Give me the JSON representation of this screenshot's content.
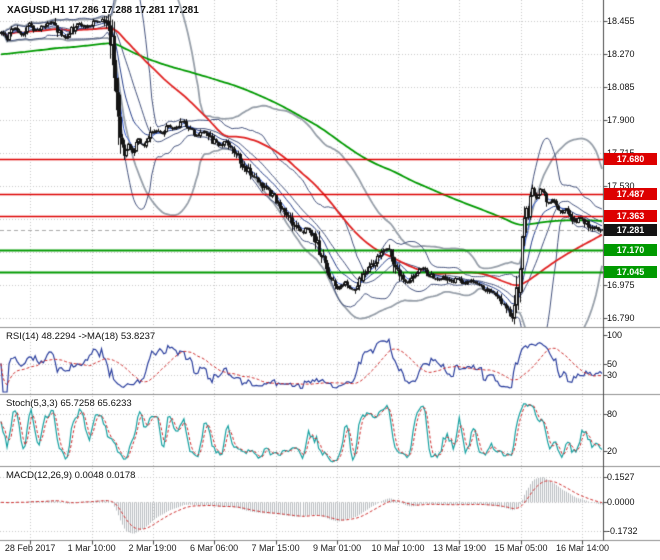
{
  "header": {
    "title": "XAGUSD,H1 17.286 17.288 17.281 17.281",
    "symbol": "XAGUSD",
    "timeframe": "H1"
  },
  "colors": {
    "background": "#ffffff",
    "grid": "#c9c9c9",
    "separator": "#8f8f8f",
    "axis_line": "#4a4a4a",
    "axis_text": "#111111",
    "bull": "#ffffff",
    "bear": "#141414",
    "candle_outline": "#141414",
    "resistance": "#dd0000",
    "support": "#009a00",
    "current_badge": "#141414",
    "badge_text": "#ffffff",
    "bid_line": "#aaaaaa"
  },
  "main_axis": {
    "ticks": [
      "18.455",
      "18.270",
      "18.085",
      "17.900",
      "17.715",
      "17.530",
      "17.345",
      "17.160",
      "16.975",
      "16.790"
    ],
    "levels": [
      {
        "label": "17.680",
        "value": 17.68,
        "kind": "resistance"
      },
      {
        "label": "17.487",
        "value": 17.487,
        "kind": "resistance"
      },
      {
        "label": "17.363",
        "value": 17.363,
        "kind": "resistance"
      },
      {
        "label": "17.170",
        "value": 17.17,
        "kind": "support"
      },
      {
        "label": "17.045",
        "value": 17.045,
        "kind": "support"
      },
      {
        "label": "17.281",
        "value": 17.281,
        "kind": "current"
      }
    ]
  },
  "time_axis": {
    "labels": [
      "28 Feb 2017",
      "1 Mar 10:00",
      "2 Mar 19:00",
      "6 Mar 06:00",
      "7 Mar 15:00",
      "9 Mar 01:00",
      "10 Mar 10:00",
      "13 Mar 19:00",
      "15 Mar 05:00",
      "16 Mar 14:00"
    ],
    "positions": [
      0.05,
      0.152,
      0.253,
      0.355,
      0.457,
      0.559,
      0.66,
      0.762,
      0.864,
      0.966
    ]
  },
  "panels": {
    "rsi": {
      "label": "RSI(14) 48.2294  ->MA(18) 53.8237",
      "ticks": [
        "100",
        "50",
        "30"
      ],
      "tick_values": [
        100,
        50,
        30
      ],
      "level_lines": [
        50,
        30
      ]
    },
    "stoch": {
      "label": "Stoch(5,3,3) 65.7258 65.6233",
      "ticks": [
        "80",
        "20"
      ],
      "tick_values": [
        80,
        20
      ],
      "level_lines": [
        80,
        20
      ]
    },
    "macd": {
      "label": "MACD(12,26,9) 0.0048 0.0178",
      "ticks": [
        "0.1527",
        "0.0000",
        "-0.1732"
      ],
      "tick_values": [
        0.1527,
        0,
        -0.1732
      ],
      "level_lines": [
        0.1527,
        0,
        -0.1732
      ]
    }
  },
  "chart_data": [
    {
      "type": "candlestick",
      "title": "XAGUSD H1",
      "bars": 300,
      "ylim": [
        16.75,
        18.53
      ],
      "last_quote": {
        "open": 17.286,
        "high": 17.288,
        "low": 17.281,
        "close": 17.281
      },
      "current_price": 17.281,
      "levels": {
        "resistance": [
          17.68,
          17.487,
          17.363
        ],
        "support": [
          17.17,
          17.045
        ]
      },
      "x_labels": [
        "28 Feb 2017",
        "1 Mar 10:00",
        "2 Mar 19:00",
        "6 Mar 06:00",
        "7 Mar 15:00",
        "9 Mar 01:00",
        "10 Mar 10:00",
        "13 Mar 19:00",
        "15 Mar 05:00",
        "16 Mar 14:00"
      ],
      "price_path_anchors": [
        [
          0.0,
          18.39
        ],
        [
          0.01,
          18.36
        ],
        [
          0.022,
          18.42
        ],
        [
          0.034,
          18.38
        ],
        [
          0.046,
          18.44
        ],
        [
          0.058,
          18.4
        ],
        [
          0.07,
          18.43
        ],
        [
          0.082,
          18.45
        ],
        [
          0.094,
          18.4
        ],
        [
          0.106,
          18.36
        ],
        [
          0.118,
          18.41
        ],
        [
          0.13,
          18.44
        ],
        [
          0.142,
          18.42
        ],
        [
          0.154,
          18.45
        ],
        [
          0.166,
          18.46
        ],
        [
          0.175,
          18.44
        ],
        [
          0.183,
          18.34
        ],
        [
          0.19,
          18.08
        ],
        [
          0.197,
          17.82
        ],
        [
          0.204,
          17.7
        ],
        [
          0.211,
          17.76
        ],
        [
          0.219,
          17.72
        ],
        [
          0.227,
          17.79
        ],
        [
          0.236,
          17.75
        ],
        [
          0.246,
          17.81
        ],
        [
          0.256,
          17.85
        ],
        [
          0.266,
          17.82
        ],
        [
          0.278,
          17.87
        ],
        [
          0.29,
          17.85
        ],
        [
          0.302,
          17.9
        ],
        [
          0.314,
          17.84
        ],
        [
          0.326,
          17.81
        ],
        [
          0.338,
          17.84
        ],
        [
          0.35,
          17.79
        ],
        [
          0.362,
          17.75
        ],
        [
          0.374,
          17.78
        ],
        [
          0.386,
          17.73
        ],
        [
          0.398,
          17.67
        ],
        [
          0.41,
          17.62
        ],
        [
          0.422,
          17.57
        ],
        [
          0.434,
          17.54
        ],
        [
          0.446,
          17.5
        ],
        [
          0.458,
          17.45
        ],
        [
          0.47,
          17.4
        ],
        [
          0.48,
          17.35
        ],
        [
          0.49,
          17.3
        ],
        [
          0.5,
          17.27
        ],
        [
          0.51,
          17.3
        ],
        [
          0.52,
          17.25
        ],
        [
          0.53,
          17.16
        ],
        [
          0.54,
          17.08
        ],
        [
          0.55,
          16.99
        ],
        [
          0.56,
          16.95
        ],
        [
          0.572,
          16.99
        ],
        [
          0.584,
          16.94
        ],
        [
          0.596,
          17.0
        ],
        [
          0.608,
          17.05
        ],
        [
          0.62,
          17.1
        ],
        [
          0.632,
          17.15
        ],
        [
          0.644,
          17.18
        ],
        [
          0.654,
          17.09
        ],
        [
          0.664,
          17.03
        ],
        [
          0.676,
          16.99
        ],
        [
          0.688,
          17.04
        ],
        [
          0.7,
          17.07
        ],
        [
          0.712,
          17.03
        ],
        [
          0.724,
          17.0
        ],
        [
          0.736,
          17.02
        ],
        [
          0.748,
          16.99
        ],
        [
          0.76,
          17.01
        ],
        [
          0.772,
          16.98
        ],
        [
          0.784,
          17.0
        ],
        [
          0.796,
          16.97
        ],
        [
          0.808,
          16.95
        ],
        [
          0.82,
          16.92
        ],
        [
          0.832,
          16.89
        ],
        [
          0.841,
          16.84
        ],
        [
          0.848,
          16.79
        ],
        [
          0.855,
          16.9
        ],
        [
          0.862,
          17.06
        ],
        [
          0.869,
          17.25
        ],
        [
          0.876,
          17.41
        ],
        [
          0.883,
          17.5
        ],
        [
          0.89,
          17.46
        ],
        [
          0.897,
          17.51
        ],
        [
          0.904,
          17.47
        ],
        [
          0.911,
          17.43
        ],
        [
          0.918,
          17.46
        ],
        [
          0.925,
          17.41
        ],
        [
          0.932,
          17.38
        ],
        [
          0.94,
          17.41
        ],
        [
          0.948,
          17.36
        ],
        [
          0.956,
          17.33
        ],
        [
          0.964,
          17.36
        ],
        [
          0.972,
          17.32
        ],
        [
          0.98,
          17.3
        ],
        [
          0.99,
          17.29
        ],
        [
          1.0,
          17.281
        ]
      ],
      "overlays": [
        {
          "name": "bollinger-outer",
          "type": "bollinger",
          "period": 44,
          "dev": 2.2,
          "color": "#98a0aa",
          "width": 1.8
        },
        {
          "name": "bollinger-inner",
          "type": "bollinger",
          "period": 20,
          "dev": 2.0,
          "color": "#47557f",
          "width": 1
        },
        {
          "name": "ma-green-slow",
          "type": "ema",
          "period": 200,
          "seed": 18.27,
          "color": "#009a00",
          "width": 1.8
        },
        {
          "name": "ma-red",
          "type": "sma",
          "period": 55,
          "color": "#e02222",
          "width": 1.8
        },
        {
          "name": "ema-mid",
          "type": "ema",
          "period": 13,
          "color": "#27408b",
          "width": 1
        },
        {
          "name": "ema-fast",
          "type": "ema",
          "period": 5,
          "color": "#3a62d8",
          "width": 1
        }
      ]
    },
    {
      "type": "line",
      "name": "RSI(14)",
      "current": 48.2294,
      "ma_period": 18,
      "ma_current": 53.8237,
      "range": [
        0,
        100
      ],
      "ticks": [
        100,
        50,
        30
      ],
      "levels": [
        50,
        30
      ],
      "color": "#2b3f9e",
      "ma_color": "#d03030"
    },
    {
      "type": "line",
      "name": "Stoch(5,3,3)",
      "current": 65.7258,
      "signal_current": 65.6233,
      "range": [
        0,
        100
      ],
      "ticks": [
        80,
        20
      ],
      "levels": [
        80,
        20
      ],
      "color": "#17a2a2",
      "signal_color": "#d03030"
    },
    {
      "type": "histogram",
      "name": "MACD(12,26,9)",
      "current": 0.0048,
      "signal_current": 0.0178,
      "ticks": [
        0.1527,
        0,
        -0.1732
      ],
      "range": [
        -0.21,
        0.19
      ],
      "color": "#b9bdc1",
      "signal_color": "#d03030"
    }
  ]
}
